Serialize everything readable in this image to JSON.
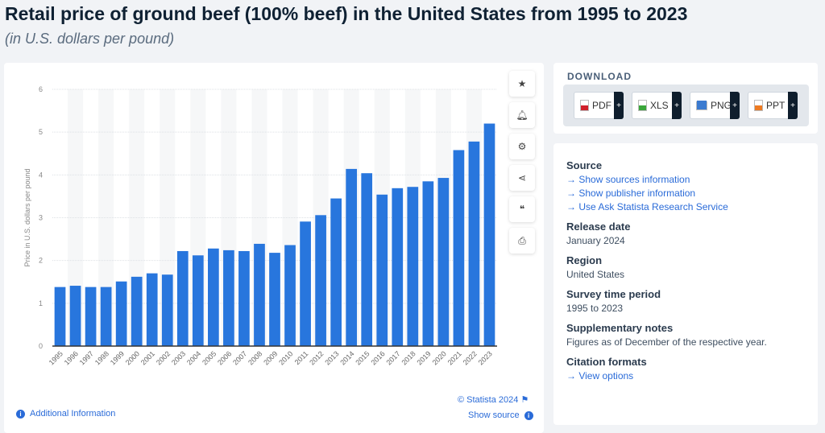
{
  "title": "Retail price of ground beef (100% beef) in the United States from 1995 to 2023",
  "subtitle": "(in U.S. dollars per pound)",
  "toolbar": [
    "star-icon",
    "bell-icon",
    "gear-icon",
    "share-icon",
    "quote-icon",
    "print-icon"
  ],
  "credit": "© Statista 2024",
  "additional_info": "Additional Information",
  "show_source": "Show source",
  "download": {
    "title": "DOWNLOAD",
    "buttons": [
      {
        "label": "PDF",
        "color": "#d0202a"
      },
      {
        "label": "XLS",
        "color": "#3aa63a"
      },
      {
        "label": "PNG",
        "color": "#3b7bd0"
      },
      {
        "label": "PPT",
        "color": "#ee7b22"
      }
    ],
    "plus": "+"
  },
  "info": {
    "source_h": "Source",
    "links": [
      "Show sources information",
      "Show publisher information",
      "Use Ask Statista Research Service"
    ],
    "release_h": "Release date",
    "release": "January 2024",
    "region_h": "Region",
    "region": "United States",
    "period_h": "Survey time period",
    "period": "1995 to 2023",
    "notes_h": "Supplementary notes",
    "notes": "Figures as of December of the respective year.",
    "cite_h": "Citation formats",
    "cite_link": "View options"
  },
  "chart_data": {
    "type": "bar",
    "title": "Retail price of ground beef (100% beef) in the United States from 1995 to 2023",
    "xlabel": "",
    "ylabel": "Price in U.S. dollars per pound",
    "ylim": [
      0,
      6
    ],
    "yticks": [
      0,
      1,
      2,
      3,
      4,
      5,
      6
    ],
    "categories": [
      "1995",
      "1996",
      "1997",
      "1998",
      "1999",
      "2000",
      "2001",
      "2002",
      "2003",
      "2004",
      "2005",
      "2006",
      "2007",
      "2008",
      "2009",
      "2010",
      "2011",
      "2012",
      "2013",
      "2014",
      "2015",
      "2016",
      "2017",
      "2018",
      "2019",
      "2020",
      "2021",
      "2022",
      "2023"
    ],
    "values": [
      1.38,
      1.41,
      1.38,
      1.38,
      1.51,
      1.62,
      1.7,
      1.67,
      2.22,
      2.12,
      2.28,
      2.24,
      2.22,
      2.39,
      2.18,
      2.36,
      2.91,
      3.06,
      3.45,
      4.14,
      4.04,
      3.54,
      3.69,
      3.72,
      3.85,
      3.93,
      4.58,
      4.78,
      5.2
    ],
    "color": "#2876dd",
    "grid": true
  }
}
